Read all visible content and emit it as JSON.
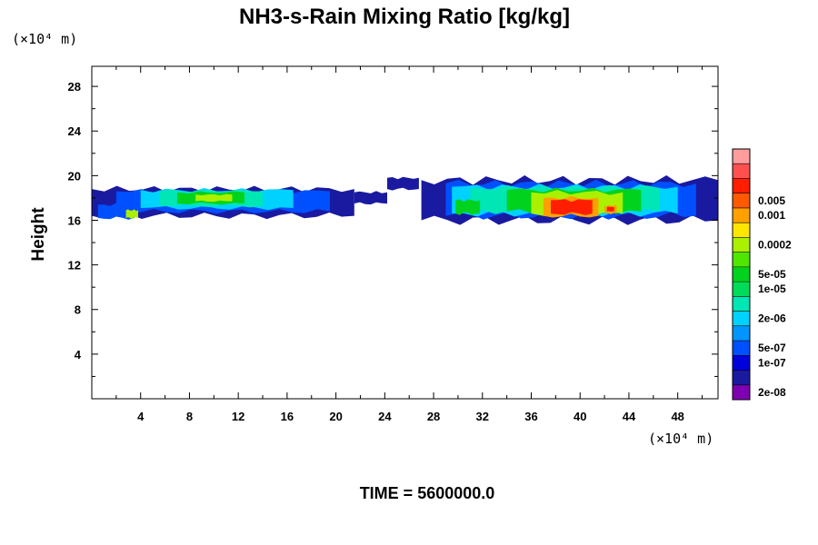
{
  "chart_data": {
    "type": "heatmap",
    "title": "NH3-s-Rain Mixing Ratio [kg/kg]",
    "ylabel": "Height",
    "x_unit": "(×10⁴ m)",
    "y_unit": "(×10⁴ m)",
    "xlim": [
      0,
      51.3
    ],
    "ylim": [
      0,
      29.8
    ],
    "x_ticks": [
      4,
      8,
      12,
      16,
      20,
      24,
      28,
      32,
      36,
      40,
      44,
      48
    ],
    "y_ticks": [
      4,
      8,
      12,
      16,
      20,
      24,
      28
    ],
    "time_label": "TIME = 5600000.0",
    "colorbar": {
      "colors": [
        "#7f00b2",
        "#1a1aa0",
        "#0000dc",
        "#0050ff",
        "#0095ff",
        "#00d2ff",
        "#00e6b4",
        "#00dc5a",
        "#00d21e",
        "#50e600",
        "#aaf000",
        "#ffe600",
        "#ffa000",
        "#ff5a00",
        "#ff1e00",
        "#ff5050",
        "#ff9c9c"
      ],
      "labels": [
        {
          "bin": 0.5,
          "text": "2e-08"
        },
        {
          "bin": 2.5,
          "text": "1e-07"
        },
        {
          "bin": 3.5,
          "text": "5e-07"
        },
        {
          "bin": 5.5,
          "text": "2e-06"
        },
        {
          "bin": 7.5,
          "text": "1e-05"
        },
        {
          "bin": 8.5,
          "text": "5e-05"
        },
        {
          "bin": 10.5,
          "text": "0.0002"
        },
        {
          "bin": 12.5,
          "text": "0.001"
        },
        {
          "bin": 13.5,
          "text": "0.005"
        }
      ]
    },
    "regions": [
      {
        "level": 1,
        "x0": 0,
        "x1": 21.5,
        "ybot": 16.4,
        "ytop": 18.8
      },
      {
        "level": 1,
        "x0": 21.5,
        "x1": 24.2,
        "ybot": 17.5,
        "ytop": 18.5
      },
      {
        "level": 1,
        "x0": 24.2,
        "x1": 26.8,
        "ybot": 18.8,
        "ytop": 19.8
      },
      {
        "level": 1,
        "x0": 27.0,
        "x1": 51.3,
        "ybot": 16.0,
        "ytop": 19.6
      },
      {
        "level": 3,
        "x0": 2.0,
        "x1": 19.5,
        "ybot": 16.8,
        "ytop": 18.6
      },
      {
        "level": 3,
        "x0": 29.0,
        "x1": 49.5,
        "ybot": 16.4,
        "ytop": 19.3
      },
      {
        "level": 3,
        "x0": 0.5,
        "x1": 3.5,
        "ybot": 16.2,
        "ytop": 17.4
      },
      {
        "level": 5,
        "x0": 4.0,
        "x1": 16.5,
        "ybot": 17.1,
        "ytop": 18.7
      },
      {
        "level": 5,
        "x0": 29.5,
        "x1": 48.0,
        "ybot": 16.6,
        "ytop": 19.0
      },
      {
        "level": 6,
        "x0": 5.5,
        "x1": 14.0,
        "ybot": 17.3,
        "ytop": 18.6
      },
      {
        "level": 6,
        "x0": 31.0,
        "x1": 46.5,
        "ybot": 16.8,
        "ytop": 18.9
      },
      {
        "level": 8,
        "x0": 7.0,
        "x1": 12.5,
        "ybot": 17.5,
        "ytop": 18.5
      },
      {
        "level": 8,
        "x0": 34.0,
        "x1": 45.0,
        "ybot": 16.8,
        "ytop": 18.7
      },
      {
        "level": 8,
        "x0": 29.8,
        "x1": 31.8,
        "ybot": 16.6,
        "ytop": 17.8
      },
      {
        "level": 10,
        "x0": 8.5,
        "x1": 11.5,
        "ybot": 17.7,
        "ytop": 18.3
      },
      {
        "level": 10,
        "x0": 36.0,
        "x1": 43.5,
        "ybot": 16.6,
        "ytop": 18.5
      },
      {
        "level": 10,
        "x0": 2.8,
        "x1": 3.8,
        "ybot": 16.2,
        "ytop": 16.9
      },
      {
        "level": 12,
        "x0": 37.0,
        "x1": 41.5,
        "ybot": 16.4,
        "ytop": 18.0
      },
      {
        "level": 12,
        "x0": 42.0,
        "x1": 43.0,
        "ybot": 16.6,
        "ytop": 17.3
      },
      {
        "level": 14,
        "x0": 37.6,
        "x1": 41.0,
        "ybot": 16.6,
        "ytop": 17.8
      },
      {
        "level": 14,
        "x0": 42.2,
        "x1": 42.8,
        "ybot": 16.8,
        "ytop": 17.2
      }
    ]
  }
}
